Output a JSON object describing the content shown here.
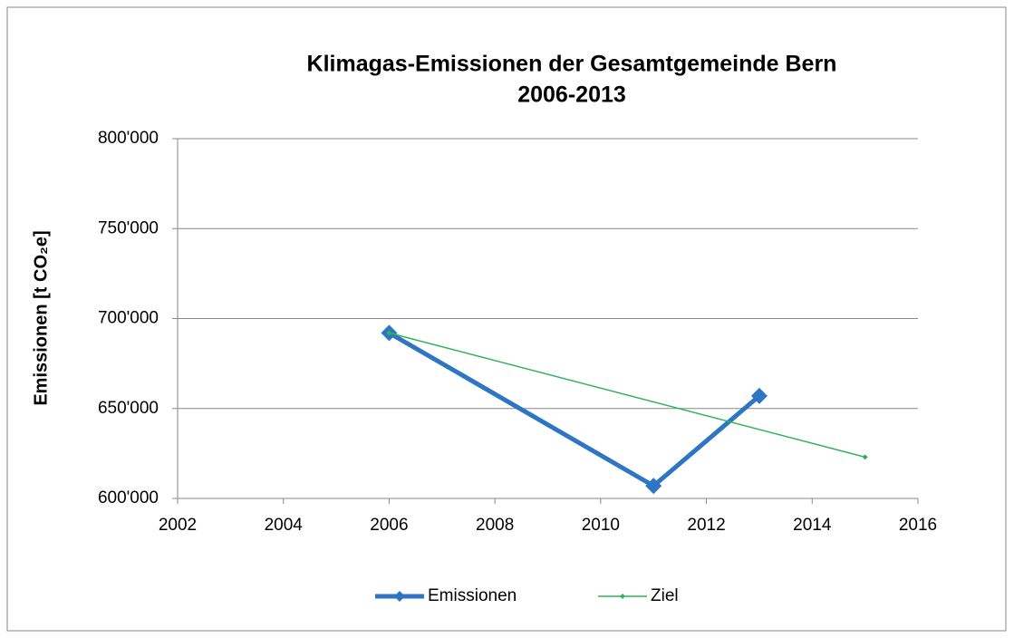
{
  "chart_data": {
    "type": "line",
    "title": [
      "Klimagas-Emissionen der Gesamtgemeinde Bern",
      "2006-2013"
    ],
    "y_label": "Emissionen [t CO₂e]",
    "xlim": [
      2002,
      2016
    ],
    "xticks": [
      2002,
      2004,
      2006,
      2008,
      2010,
      2012,
      2014,
      2016
    ],
    "ylim": [
      600000,
      800000
    ],
    "yticks": [
      {
        "value": 600000,
        "label": "600'000"
      },
      {
        "value": 650000,
        "label": "650'000"
      },
      {
        "value": 700000,
        "label": "700'000"
      },
      {
        "value": 750000,
        "label": "750'000"
      },
      {
        "value": 800000,
        "label": "800'000"
      }
    ],
    "grid": true,
    "legend": "bottom",
    "series": [
      {
        "name": "Emissionen",
        "color": "#2e75c4",
        "x": [
          2006,
          2011,
          2013
        ],
        "values": [
          692000,
          607000,
          657000
        ]
      },
      {
        "name": "Ziel",
        "color": "#2fb35a",
        "x": [
          2006,
          2015
        ],
        "values": [
          692000,
          623000
        ]
      }
    ]
  }
}
